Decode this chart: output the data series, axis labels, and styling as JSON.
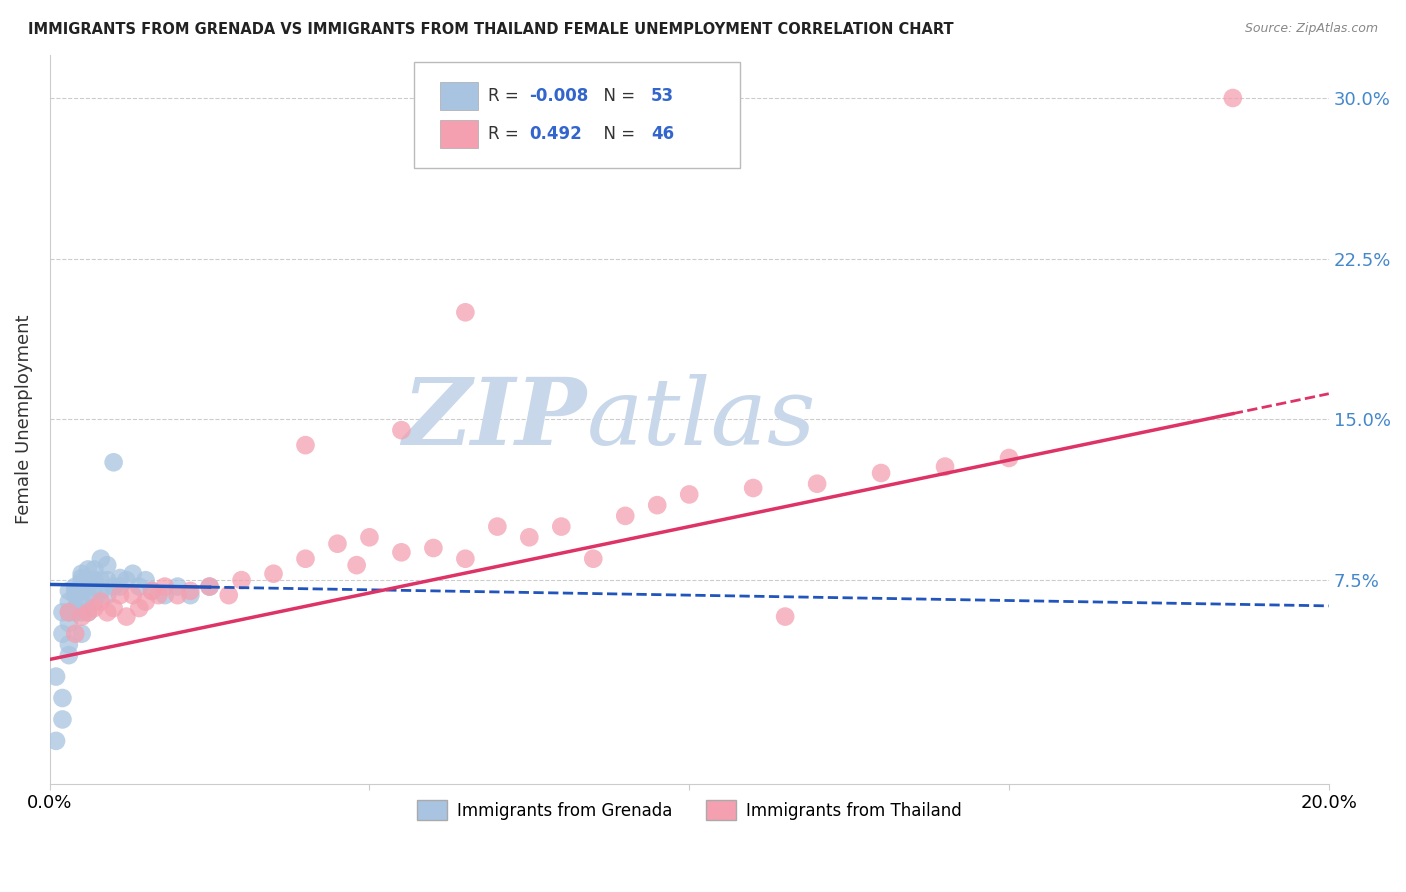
{
  "title": "IMMIGRANTS FROM GRENADA VS IMMIGRANTS FROM THAILAND FEMALE UNEMPLOYMENT CORRELATION CHART",
  "source": "Source: ZipAtlas.com",
  "ylabel": "Female Unemployment",
  "right_yticks": [
    "30.0%",
    "22.5%",
    "15.0%",
    "7.5%"
  ],
  "right_ytick_vals": [
    0.3,
    0.225,
    0.15,
    0.075
  ],
  "xlim": [
    0.0,
    0.2
  ],
  "ylim": [
    -0.02,
    0.32
  ],
  "grenada_R": -0.008,
  "grenada_N": 53,
  "thailand_R": 0.492,
  "thailand_N": 46,
  "grenada_color": "#a8c4e0",
  "thailand_color": "#f4a0b0",
  "grenada_line_color": "#2255bb",
  "thailand_line_color": "#dd3366",
  "watermark_zip": "ZIP",
  "watermark_atlas": "atlas",
  "watermark_color_zip": "#c8d8ea",
  "watermark_color_atlas": "#c8d8ea",
  "background_color": "#ffffff",
  "grenada_scatter_x": [
    0.001,
    0.002,
    0.002,
    0.002,
    0.003,
    0.003,
    0.003,
    0.003,
    0.003,
    0.004,
    0.004,
    0.004,
    0.004,
    0.004,
    0.005,
    0.005,
    0.005,
    0.005,
    0.005,
    0.005,
    0.005,
    0.005,
    0.006,
    0.006,
    0.006,
    0.006,
    0.006,
    0.007,
    0.007,
    0.007,
    0.007,
    0.008,
    0.008,
    0.008,
    0.009,
    0.009,
    0.009,
    0.01,
    0.01,
    0.011,
    0.011,
    0.012,
    0.013,
    0.014,
    0.015,
    0.016,
    0.018,
    0.02,
    0.022,
    0.025,
    0.001,
    0.002,
    0.003
  ],
  "grenada_scatter_y": [
    0.03,
    0.02,
    0.05,
    0.06,
    0.045,
    0.055,
    0.06,
    0.065,
    0.07,
    0.06,
    0.062,
    0.068,
    0.07,
    0.072,
    0.05,
    0.06,
    0.065,
    0.07,
    0.072,
    0.074,
    0.076,
    0.078,
    0.06,
    0.068,
    0.072,
    0.075,
    0.08,
    0.065,
    0.072,
    0.075,
    0.08,
    0.07,
    0.075,
    0.085,
    0.068,
    0.075,
    0.082,
    0.072,
    0.13,
    0.072,
    0.076,
    0.075,
    0.078,
    0.072,
    0.075,
    0.07,
    0.068,
    0.072,
    0.068,
    0.072,
    0.0,
    0.01,
    0.04
  ],
  "thailand_scatter_x": [
    0.003,
    0.004,
    0.005,
    0.006,
    0.007,
    0.008,
    0.009,
    0.01,
    0.011,
    0.012,
    0.013,
    0.014,
    0.015,
    0.016,
    0.017,
    0.018,
    0.02,
    0.022,
    0.025,
    0.028,
    0.03,
    0.035,
    0.04,
    0.045,
    0.048,
    0.05,
    0.055,
    0.06,
    0.065,
    0.07,
    0.075,
    0.08,
    0.09,
    0.095,
    0.1,
    0.11,
    0.12,
    0.13,
    0.14,
    0.15,
    0.04,
    0.055,
    0.065,
    0.085,
    0.115,
    0.185
  ],
  "thailand_scatter_y": [
    0.06,
    0.05,
    0.058,
    0.06,
    0.062,
    0.065,
    0.06,
    0.062,
    0.068,
    0.058,
    0.068,
    0.062,
    0.065,
    0.07,
    0.068,
    0.072,
    0.068,
    0.07,
    0.072,
    0.068,
    0.075,
    0.078,
    0.085,
    0.092,
    0.082,
    0.095,
    0.088,
    0.09,
    0.085,
    0.1,
    0.095,
    0.1,
    0.105,
    0.11,
    0.115,
    0.118,
    0.12,
    0.125,
    0.128,
    0.132,
    0.138,
    0.145,
    0.2,
    0.085,
    0.058,
    0.3
  ],
  "grenada_line_slope": -0.05,
  "grenada_line_intercept": 0.073,
  "thailand_line_slope": 0.62,
  "thailand_line_intercept": 0.038
}
